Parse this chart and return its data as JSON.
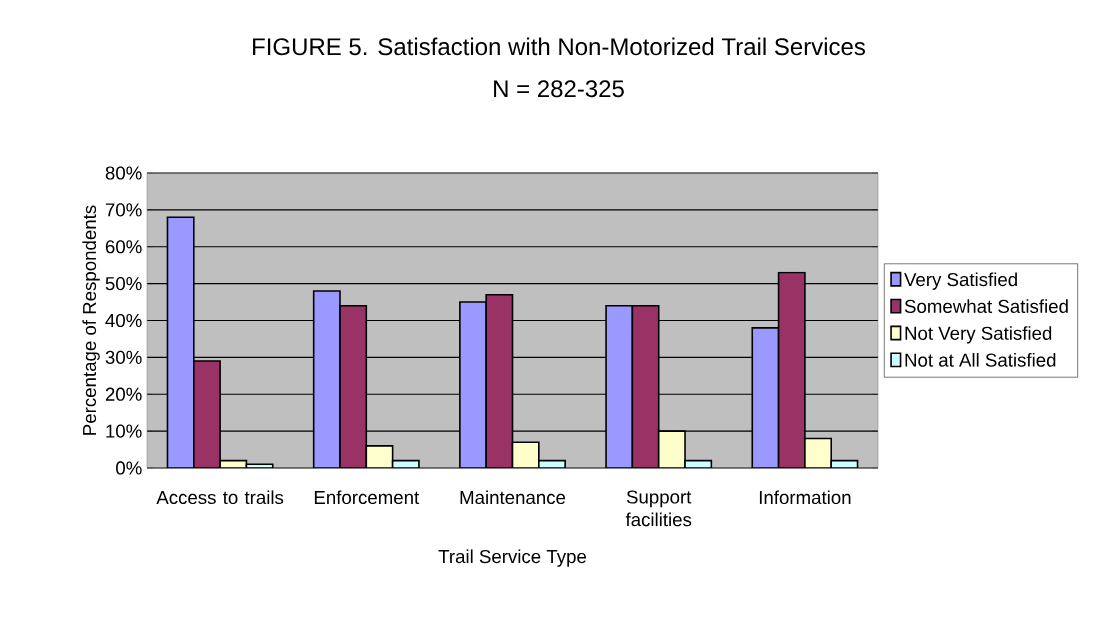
{
  "chart_data": {
    "type": "bar",
    "title": "FIGURE 5.  Satisfaction with Non-Motorized Trail Services",
    "subtitle": "N = 282-325",
    "xlabel": "Trail Service Type",
    "ylabel": "Percentage of Respondents",
    "categories": [
      "Access to trails",
      "Enforcement",
      "Maintenance",
      "Support facilities",
      "Information"
    ],
    "series": [
      {
        "name": "Very Satisfied",
        "color": "#9999ff",
        "values": [
          68,
          48,
          45,
          44,
          38
        ]
      },
      {
        "name": "Somewhat Satisfied",
        "color": "#993366",
        "values": [
          29,
          44,
          47,
          44,
          53
        ]
      },
      {
        "name": "Not Very Satisfied",
        "color": "#ffffcc",
        "values": [
          2,
          6,
          7,
          10,
          8
        ]
      },
      {
        "name": "Not at All Satisfied",
        "color": "#ccffff",
        "values": [
          1,
          2,
          2,
          2,
          2
        ]
      }
    ],
    "ylim": [
      0,
      80
    ],
    "yticks": [
      {
        "value": 0,
        "label": "0%"
      },
      {
        "value": 10,
        "label": "10%"
      },
      {
        "value": 20,
        "label": "20%"
      },
      {
        "value": 30,
        "label": "30%"
      },
      {
        "value": 40,
        "label": "40%"
      },
      {
        "value": 50,
        "label": "50%"
      },
      {
        "value": 60,
        "label": "60%"
      },
      {
        "value": 70,
        "label": "70%"
      },
      {
        "value": 80,
        "label": "80%"
      }
    ],
    "grid": "y",
    "legend": "right"
  }
}
